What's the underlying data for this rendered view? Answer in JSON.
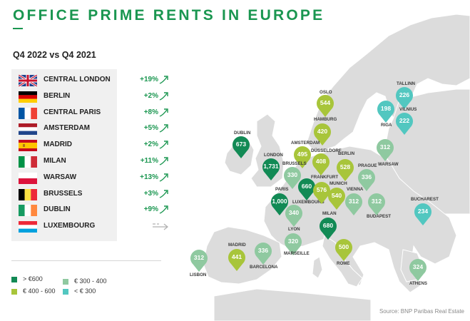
{
  "title": "OFFICE PRIME RENTS IN EUROPE",
  "subtitle": "Q4 2022 vs Q4 2021",
  "source": "Source: BNP Paribas Real Estate",
  "colors": {
    "dark_green": "#128a55",
    "lime": "#a8c53a",
    "sage": "#8fc9a0",
    "teal": "#52c7c0"
  },
  "table": [
    {
      "flag": "uk-flag-icon",
      "city": "CENTRAL LONDON",
      "change": "+19%",
      "arrow": "up-arrow-icon"
    },
    {
      "flag": "germany-flag-icon",
      "city": "BERLIN",
      "change": "+2%",
      "arrow": "up-arrow-icon"
    },
    {
      "flag": "france-flag-icon",
      "city": "CENTRAL PARIS",
      "change": "+8%",
      "arrow": "up-arrow-icon"
    },
    {
      "flag": "netherlands-flag-icon",
      "city": "AMSTERDAM",
      "change": "+5%",
      "arrow": "up-arrow-icon"
    },
    {
      "flag": "spain-flag-icon",
      "city": "MADRID",
      "change": "+2%",
      "arrow": "up-arrow-icon"
    },
    {
      "flag": "italy-flag-icon",
      "city": "MILAN",
      "change": "+11%",
      "arrow": "up-arrow-icon"
    },
    {
      "flag": "poland-flag-icon",
      "city": "WARSAW",
      "change": "+13%",
      "arrow": "up-arrow-icon"
    },
    {
      "flag": "belgium-flag-icon",
      "city": "BRUSSELS",
      "change": "+3%",
      "arrow": "up-arrow-icon"
    },
    {
      "flag": "ireland-flag-icon",
      "city": "DUBLIN",
      "change": "+9%",
      "arrow": "up-arrow-icon"
    },
    {
      "flag": "luxembourg-flag-icon",
      "city": "LUXEMBOURG",
      "change": "",
      "arrow": "flat-arrow-icon"
    }
  ],
  "legend": [
    {
      "label": "> €600",
      "color": "#128a55"
    },
    {
      "label": "€ 300 - 400",
      "color": "#8fc9a0"
    },
    {
      "label": "€ 400 - 600",
      "color": "#a8c53a"
    },
    {
      "label": "< € 300",
      "color": "#52c7c0"
    }
  ],
  "pins": [
    {
      "city": "DUBLIN",
      "value": "673",
      "color": "#128a55"
    },
    {
      "city": "LONDON",
      "value": "1,731",
      "color": "#128a55"
    },
    {
      "city": "PARIS",
      "value": "1,000",
      "color": "#128a55"
    },
    {
      "city": "LUXEMBOURG",
      "value": "660",
      "color": "#128a55"
    },
    {
      "city": "MILAN",
      "value": "680",
      "color": "#128a55"
    },
    {
      "city": "OSLO",
      "value": "544",
      "color": "#a8c53a"
    },
    {
      "city": "HAMBURG",
      "value": "420",
      "color": "#a8c53a"
    },
    {
      "city": "AMSTERDAM",
      "value": "495",
      "color": "#a8c53a"
    },
    {
      "city": "DÜSSELDORF",
      "value": "408",
      "color": "#a8c53a"
    },
    {
      "city": "BERLIN",
      "value": "528",
      "color": "#a8c53a"
    },
    {
      "city": "FRANKFURT",
      "value": "576",
      "color": "#a8c53a"
    },
    {
      "city": "MUNICH",
      "value": "540",
      "color": "#a8c53a"
    },
    {
      "city": "MADRID",
      "value": "441",
      "color": "#a8c53a"
    },
    {
      "city": "ROME",
      "value": "500",
      "color": "#a8c53a"
    },
    {
      "city": "BRUSSELS",
      "value": "330",
      "color": "#8fc9a0"
    },
    {
      "city": "PRAGUE",
      "value": "336",
      "color": "#8fc9a0"
    },
    {
      "city": "WARSAW",
      "value": "312",
      "color": "#8fc9a0"
    },
    {
      "city": "VIENNA",
      "value": "312",
      "color": "#8fc9a0"
    },
    {
      "city": "BUDAPEST",
      "value": "312",
      "color": "#8fc9a0"
    },
    {
      "city": "LYON",
      "value": "340",
      "color": "#8fc9a0"
    },
    {
      "city": "MARSEILLE",
      "value": "320",
      "color": "#8fc9a0"
    },
    {
      "city": "BARCELONA",
      "value": "336",
      "color": "#8fc9a0"
    },
    {
      "city": "LISBON",
      "value": "312",
      "color": "#8fc9a0"
    },
    {
      "city": "ATHENS",
      "value": "324",
      "color": "#8fc9a0"
    },
    {
      "city": "TALLINN",
      "value": "226",
      "color": "#52c7c0"
    },
    {
      "city": "RIGA",
      "value": "198",
      "color": "#52c7c0"
    },
    {
      "city": "VILNIUS",
      "value": "222",
      "color": "#52c7c0"
    },
    {
      "city": "BUCHAREST",
      "value": "234",
      "color": "#52c7c0"
    }
  ]
}
